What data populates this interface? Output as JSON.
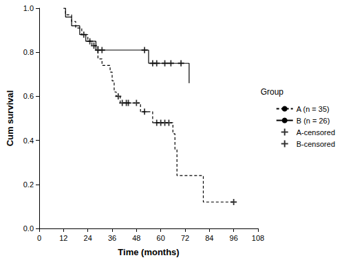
{
  "chart_data": {
    "type": "line",
    "x_label": "Time (months)",
    "y_label": "Cum survival",
    "legend_title": "Group",
    "legend": "right",
    "grid": false,
    "xlim": [
      0,
      108
    ],
    "xticks": [
      0,
      12,
      24,
      36,
      48,
      60,
      72,
      84,
      96,
      108
    ],
    "ylim": [
      0,
      1
    ],
    "yticks": [
      {
        "value": 0,
        "label": "0.0"
      },
      0.2,
      0.4,
      0.6,
      0.8,
      {
        "value": 1,
        "label": "1.0"
      }
    ],
    "series": [
      {
        "name": "A (n = 35)",
        "type": "line",
        "color": "#000000",
        "line_style": "dashed",
        "x": [
          12,
          13,
          16,
          18,
          21,
          24,
          26,
          29,
          31,
          35,
          36,
          37,
          38,
          40,
          50,
          56,
          66,
          67,
          68,
          81,
          96
        ],
        "values": [
          1,
          0.97,
          0.94,
          0.91,
          0.88,
          0.85,
          0.83,
          0.77,
          0.74,
          0.71,
          0.67,
          0.62,
          0.6,
          0.57,
          0.53,
          0.48,
          0.43,
          0.36,
          0.24,
          0.12,
          0.12
        ]
      },
      {
        "name": "B (n = 26)",
        "type": "line",
        "color": "#000000",
        "line_style": "solid",
        "x": [
          12,
          13,
          16,
          20,
          23,
          28,
          54,
          74
        ],
        "values": [
          1,
          0.96,
          0.92,
          0.88,
          0.85,
          0.81,
          0.75,
          0.66
        ]
      },
      {
        "name": "A-censored",
        "type": "scatter",
        "color": "#000000",
        "marker": "+",
        "x": [
          27,
          39,
          41,
          43,
          44,
          48,
          52,
          58,
          60,
          62,
          64,
          96
        ],
        "values": [
          0.83,
          0.6,
          0.57,
          0.57,
          0.57,
          0.57,
          0.53,
          0.48,
          0.48,
          0.48,
          0.48,
          0.12
        ]
      },
      {
        "name": "B-censored",
        "type": "scatter",
        "color": "#000000",
        "marker": "+",
        "x": [
          22,
          25,
          29,
          31,
          52,
          56,
          58,
          62,
          65,
          70
        ],
        "values": [
          0.88,
          0.85,
          0.81,
          0.81,
          0.81,
          0.75,
          0.75,
          0.75,
          0.75,
          0.75
        ]
      }
    ]
  }
}
